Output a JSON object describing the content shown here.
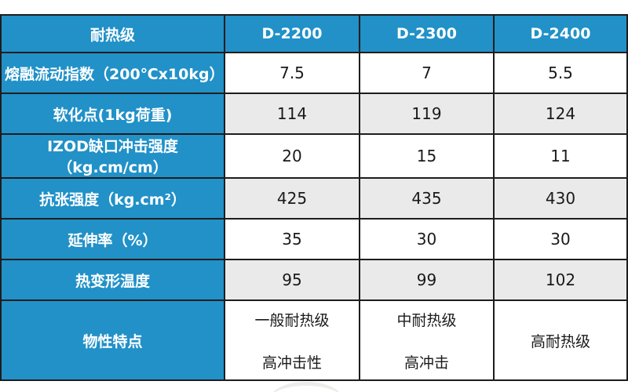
{
  "table": {
    "columns": [
      "耐热级",
      "D-2200",
      "D-2300",
      "D-2400"
    ],
    "rows": [
      {
        "label": "熔融流动指数（200℃x10kg）",
        "values": [
          "7.5",
          "7",
          "5.5"
        ],
        "alt": false
      },
      {
        "label": "软化点(1kg荷重)",
        "values": [
          "114",
          "119",
          "124"
        ],
        "alt": true
      },
      {
        "label": "IZOD缺口冲击强度（kg.cm/cm）",
        "values": [
          "20",
          "15",
          "11"
        ],
        "alt": false
      },
      {
        "label": "抗张强度（kg.cm²）",
        "values": [
          "425",
          "435",
          "430"
        ],
        "alt": true
      },
      {
        "label": "延伸率（%）",
        "values": [
          "35",
          "30",
          "30"
        ],
        "alt": false
      },
      {
        "label": "热变形温度",
        "values": [
          "95",
          "99",
          "102"
        ],
        "alt": true
      }
    ],
    "feature_row": {
      "label": "物性特点",
      "values": [
        [
          "一般耐热级",
          "高冲击性"
        ],
        [
          "中耐热级",
          "高冲击"
        ],
        [
          "高耐热级"
        ]
      ]
    }
  },
  "colors": {
    "accent_blue": "#2191c8",
    "alt_row_gray": "#eaeaea",
    "border_dark": "#1d1d1d",
    "value_text": "#1a1a1a",
    "header_text": "#ffffff"
  }
}
